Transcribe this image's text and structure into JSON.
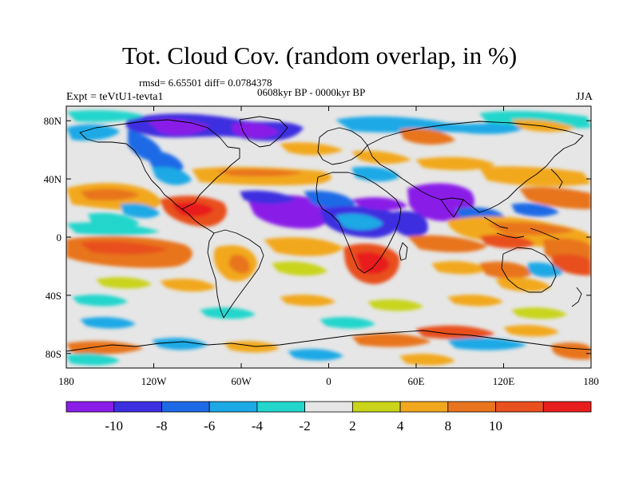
{
  "title": "Tot. Cloud Cov. (random overlap, in %)",
  "stats_line": "rmsd= 6.65501 diff= 0.0784378",
  "period": "0608kyr BP - 0000kyr BP",
  "experiment": "Expt = teVtU1-tevta1",
  "season": "JJA",
  "axes": {
    "lat_labels": [
      "80N",
      "40N",
      "0",
      "40S",
      "80S"
    ],
    "lat_values": [
      80,
      40,
      0,
      -40,
      -80
    ],
    "lon_labels": [
      "180",
      "120W",
      "60W",
      "0",
      "60E",
      "120E",
      "180"
    ],
    "lon_values": [
      -180,
      -120,
      -60,
      0,
      60,
      120,
      180
    ],
    "lat_range": [
      -90,
      90
    ],
    "lon_range": [
      -180,
      180
    ]
  },
  "colorbar": {
    "labels": [
      "-10",
      "-8",
      "-6",
      "-4",
      "-2",
      "2",
      "4",
      "8",
      "10"
    ],
    "colors": [
      "#8a1ee8",
      "#3c2fe0",
      "#1e6ae6",
      "#1ca9e6",
      "#22d6cc",
      "#e6e6e6",
      "#c9d41a",
      "#f2a81e",
      "#e8741e",
      "#e8501e",
      "#e81e1e"
    ]
  },
  "colors": {
    "ocean_land_neutral": "#e6e6e6",
    "coastline": "#000000"
  }
}
